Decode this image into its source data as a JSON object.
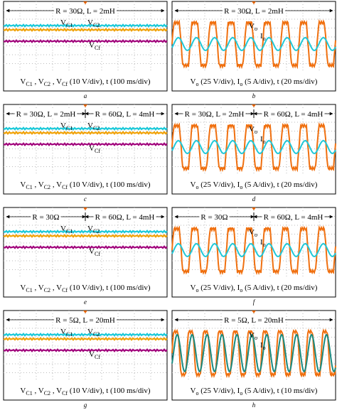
{
  "panels": [
    {
      "letter": "a",
      "segments": [
        "R = 30Ω, L = 2mH"
      ],
      "signals": [
        [
          "V",
          "C1"
        ],
        [
          "V",
          "C2"
        ],
        [
          "V",
          "Cf"
        ]
      ],
      "caption": [
        "V",
        "C1",
        " , V",
        "C2",
        " , V",
        "Cf",
        " (10 V/div),  t (100 ms/div)"
      ]
    },
    {
      "letter": "b",
      "segments": [
        "R = 30Ω, L = 2mH"
      ],
      "signals": [
        [
          "V",
          "o"
        ],
        [
          "I",
          "o"
        ]
      ],
      "caption": [
        "V",
        "o",
        " (25 V/div),  I",
        "o",
        " (5 A/div),  t (20 ms/div)"
      ]
    },
    {
      "letter": "c",
      "segments": [
        "R = 30Ω, L = 2mH",
        "R = 60Ω, L = 4mH"
      ],
      "signals": [
        [
          "V",
          "C1"
        ],
        [
          "V",
          "C2"
        ],
        [
          "V",
          "Cf"
        ]
      ],
      "caption": [
        "V",
        "C1",
        " , V",
        "C2",
        " , V",
        "Cf",
        " (10 V/div),  t (100 ms/div)"
      ]
    },
    {
      "letter": "d",
      "segments": [
        "R = 30Ω, L = 2mH",
        "R = 60Ω, L = 4mH"
      ],
      "signals": [
        [
          "V",
          "o"
        ],
        [
          "I",
          "o"
        ]
      ],
      "caption": [
        "V",
        "o",
        " (25 V/div),  I",
        "o",
        " (5 A/div),  t (20 ms/div)"
      ]
    },
    {
      "letter": "e",
      "segments": [
        "R = 30Ω",
        "R = 60Ω, L = 4mH"
      ],
      "signals": [
        [
          "V",
          "C1"
        ],
        [
          "V",
          "C2"
        ],
        [
          "V",
          "Cf"
        ]
      ],
      "caption": [
        "V",
        "C1",
        " , V",
        "C2",
        " , V",
        "Cf",
        " (10 V/div),  t (100 ms/div)"
      ]
    },
    {
      "letter": "f",
      "segments": [
        "R = 30Ω",
        "R = 60Ω, L = 4mH"
      ],
      "signals": [
        [
          "V",
          "o"
        ],
        [
          "I",
          "o"
        ]
      ],
      "caption": [
        "V",
        "o",
        " (25 V/div),  I",
        "o",
        " (5 A/div),  t (20 ms/div)"
      ]
    },
    {
      "letter": "g",
      "segments": [
        "R = 5Ω, L = 20mH"
      ],
      "signals": [
        [
          "V",
          "C1"
        ],
        [
          "V",
          "C2"
        ],
        [
          "V",
          "Cf"
        ]
      ],
      "caption": [
        "V",
        "C1",
        " , V",
        "C2",
        " , V",
        "Cf",
        " (10 V/div),  t (100 ms/div)"
      ]
    },
    {
      "letter": "h",
      "segments": [
        "R = 5Ω, L = 20mH"
      ],
      "signals": [
        [
          "V",
          "o"
        ],
        [
          "I",
          "o"
        ]
      ],
      "caption": [
        "V",
        "o",
        " (25 V/div),  I",
        "o",
        " (5 A/div),  t (10 ms/div)"
      ]
    }
  ]
}
